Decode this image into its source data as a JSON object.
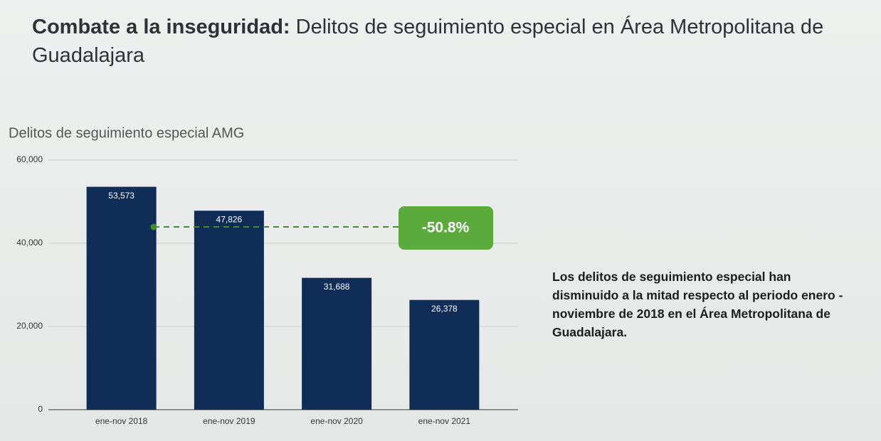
{
  "header": {
    "title_bold": "Combate a la inseguridad:",
    "title_rest": "Delitos de seguimiento especial en Área Metropolitana de Guadalajara"
  },
  "chart_data": {
    "type": "bar",
    "title": "Delitos de seguimiento especial AMG",
    "categories": [
      "ene-nov 2018",
      "ene-nov 2019",
      "ene-nov 2020",
      "ene-nov 2021"
    ],
    "values": [
      53573,
      47826,
      31688,
      26378
    ],
    "value_labels": [
      "53,573",
      "47,826",
      "31,688",
      "26,378"
    ],
    "color": "#0f2d56",
    "ylim": [
      0,
      60000
    ],
    "yticks": [
      0,
      {
        "value": 20000,
        "label": "20,000"
      },
      {
        "value": 40000,
        "label": "40,000"
      },
      {
        "value": 60000,
        "label": "60,000"
      }
    ],
    "grid": true,
    "annotation": "-50.8%"
  },
  "note": "Los delitos de seguimiento especial han disminuido a la mitad respecto al periodo enero - noviembre de 2018 en el Área Metropolitana de Guadalajara."
}
